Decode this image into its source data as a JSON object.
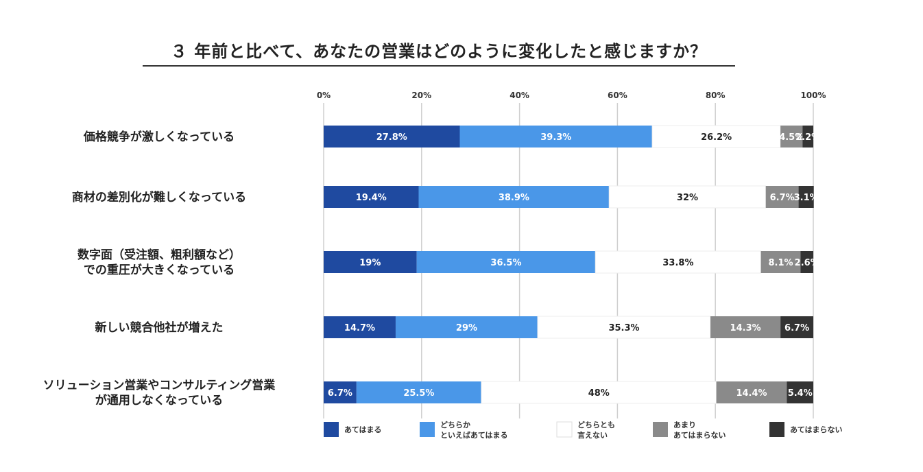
{
  "title": "３ 年前と比べて、あなたの営業はどのように変化したと感じますか？",
  "chart_data": {
    "type": "bar",
    "orientation": "horizontal",
    "stacked": "percent",
    "categories": [
      [
        "価格競争が激しくなっている"
      ],
      [
        "商材の差別化が難しくなっている"
      ],
      [
        "数字面（受注額、粗利額など）",
        "での重圧が大きくなっている"
      ],
      [
        "新しい競合他社が増えた"
      ],
      [
        "ソリューション営業やコンサルティング営業",
        "が通用しなくなっている"
      ]
    ],
    "series": [
      {
        "name": [
          "あてはまる"
        ],
        "color": "#1f4aa0",
        "text_color": "#ffffff",
        "values": [
          27.8,
          19.4,
          19,
          14.7,
          6.7
        ],
        "labels": [
          "27.8%",
          "19.4%",
          "19%",
          "14.7%",
          "6.7%"
        ]
      },
      {
        "name": [
          "どちらか",
          "といえばあてはまる"
        ],
        "color": "#4a97e8",
        "text_color": "#ffffff",
        "values": [
          39.3,
          38.9,
          36.5,
          29,
          25.5
        ],
        "labels": [
          "39.3%",
          "38.9%",
          "36.5%",
          "29%",
          "25.5%"
        ]
      },
      {
        "name": [
          "どちらとも",
          "言えない"
        ],
        "color": "#ffffff",
        "text_color": "#222222",
        "values": [
          26.2,
          32,
          33.8,
          35.3,
          48
        ],
        "labels": [
          "26.2%",
          "32%",
          "33.8%",
          "35.3%",
          "48%"
        ]
      },
      {
        "name": [
          "あまり",
          "あてはまらない"
        ],
        "color": "#8a8a8a",
        "text_color": "#ffffff",
        "values": [
          4.5,
          6.7,
          8.1,
          14.3,
          14.4
        ],
        "labels": [
          "4.5%",
          "6.7%",
          "8.1%",
          "14.3%",
          "14.4%"
        ]
      },
      {
        "name": [
          "あてはまらない"
        ],
        "color": "#333333",
        "text_color": "#ffffff",
        "values": [
          2.2,
          3.1,
          2.6,
          6.7,
          5.4
        ],
        "labels": [
          "2.2%",
          "3.1%",
          "2.6%",
          "6.7%",
          "5.4%"
        ]
      }
    ],
    "xlim": [
      0,
      100
    ],
    "xticks": [
      "0%",
      "20%",
      "40%",
      "60%",
      "80%",
      "100%"
    ],
    "grid": true,
    "legend": "bottom"
  }
}
